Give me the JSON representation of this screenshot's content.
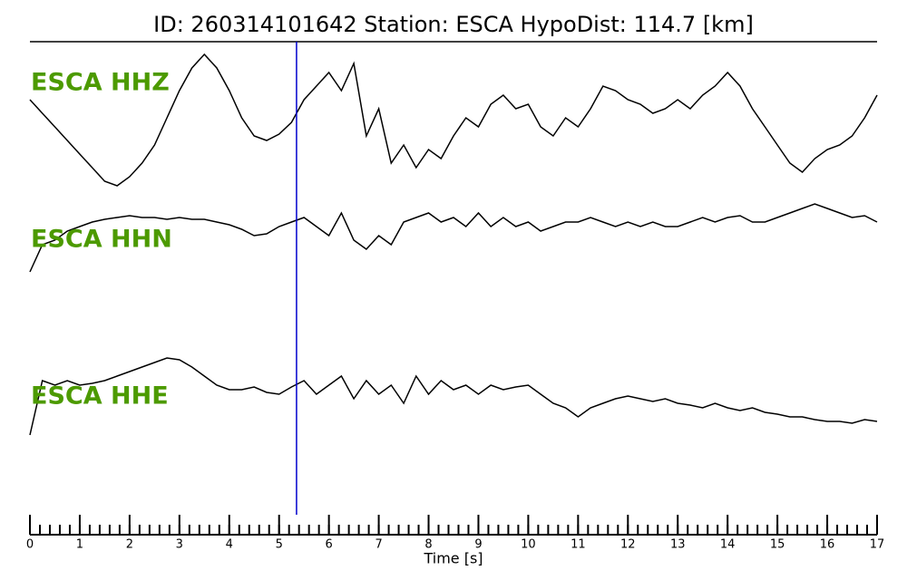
{
  "chart_data": {
    "type": "seismogram",
    "title": "ID: 260314101642   Station: ESCA   HypoDist:   114.7 [km]",
    "xlabel": "Time [s]",
    "xlim": [
      0,
      17
    ],
    "xticks": [
      0,
      1,
      2,
      3,
      4,
      5,
      6,
      7,
      8,
      9,
      10,
      11,
      12,
      13,
      14,
      15,
      16,
      17
    ],
    "xminor_step": 0.2,
    "ylim": [
      -100,
      100
    ],
    "pick": 5.35,
    "pick_color": "#0000cc",
    "label_color": "#4c9a00",
    "trace_color": "#000000",
    "x": [
      0,
      0.25,
      0.5,
      0.75,
      1,
      1.25,
      1.5,
      1.75,
      2,
      2.25,
      2.5,
      2.75,
      3,
      3.25,
      3.5,
      3.75,
      4,
      4.25,
      4.5,
      4.75,
      5,
      5.25,
      5.5,
      5.75,
      6,
      6.25,
      6.5,
      6.75,
      7,
      7.25,
      7.5,
      7.75,
      8,
      8.25,
      8.5,
      8.75,
      9,
      9.25,
      9.5,
      9.75,
      10,
      10.25,
      10.5,
      10.75,
      11,
      11.25,
      11.5,
      11.75,
      12,
      12.25,
      12.5,
      12.75,
      13,
      13.25,
      13.5,
      13.75,
      14,
      14.25,
      14.5,
      14.75,
      15,
      15.25,
      15.5,
      15.75,
      16,
      16.25,
      16.5,
      16.75,
      17
    ],
    "series": [
      {
        "name": "ESCA HHZ",
        "values": [
          23,
          8,
          -7,
          -22,
          -37,
          -52,
          -67,
          -72,
          -62,
          -47,
          -27,
          3,
          33,
          58,
          73,
          58,
          33,
          3,
          -17,
          -22,
          -15,
          -2,
          23,
          38,
          53,
          33,
          63,
          -17,
          13,
          -47,
          -27,
          -52,
          -32,
          -42,
          -17,
          3,
          -7,
          18,
          28,
          13,
          18,
          -7,
          -17,
          3,
          -7,
          13,
          38,
          33,
          23,
          18,
          8,
          13,
          23,
          13,
          28,
          38,
          53,
          38,
          13,
          -7,
          -27,
          -47,
          -57,
          -42,
          -32,
          -27,
          -17,
          3,
          28
        ]
      },
      {
        "name": "ESCA HHN",
        "values": [
          -50,
          -20,
          -15,
          -5,
          0,
          5,
          8,
          10,
          12,
          10,
          10,
          8,
          10,
          8,
          8,
          5,
          2,
          -3,
          -10,
          -8,
          0,
          5,
          10,
          0,
          -10,
          15,
          -15,
          -25,
          -10,
          -20,
          5,
          10,
          15,
          5,
          10,
          0,
          15,
          0,
          10,
          0,
          5,
          -5,
          0,
          5,
          5,
          10,
          5,
          0,
          5,
          0,
          5,
          0,
          0,
          5,
          10,
          5,
          10,
          12,
          5,
          5,
          10,
          15,
          20,
          25,
          20,
          15,
          10,
          12,
          5
        ]
      },
      {
        "name": "ESCA HHE",
        "values": [
          -45,
          15,
          10,
          15,
          10,
          12,
          15,
          20,
          25,
          30,
          35,
          40,
          38,
          30,
          20,
          10,
          5,
          5,
          8,
          2,
          0,
          8,
          15,
          0,
          10,
          20,
          -5,
          15,
          0,
          10,
          -10,
          20,
          0,
          15,
          5,
          10,
          0,
          10,
          5,
          8,
          10,
          0,
          -10,
          -15,
          -25,
          -15,
          -10,
          -5,
          -2,
          -5,
          -8,
          -5,
          -10,
          -12,
          -15,
          -10,
          -15,
          -18,
          -15,
          -20,
          -22,
          -25,
          -25,
          -28,
          -30,
          -30,
          -32,
          -28,
          -30
        ]
      }
    ]
  }
}
